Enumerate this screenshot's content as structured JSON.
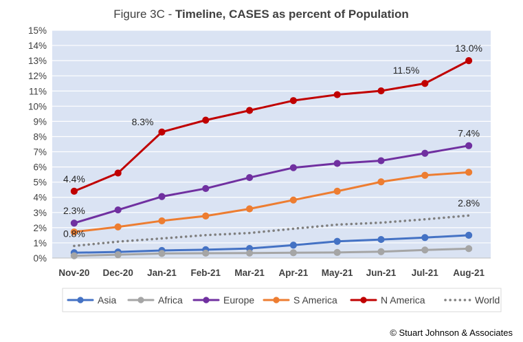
{
  "chart_data": {
    "type": "line",
    "title_prefix": "Figure 3C - ",
    "title_main": "Timeline, CASES as percent of Population",
    "xlabel": "",
    "ylabel": "",
    "categories": [
      "Nov-20",
      "Dec-20",
      "Jan-21",
      "Feb-21",
      "Mar-21",
      "Apr-21",
      "May-21",
      "Jun-21",
      "Jul-21",
      "Aug-21"
    ],
    "y_ticks": [
      "0%",
      "1%",
      "2%",
      "3%",
      "4%",
      "5%",
      "6%",
      "7%",
      "8%",
      "9%",
      "10%",
      "11%",
      "12%",
      "13%",
      "14%",
      "15%"
    ],
    "ylim": [
      0,
      15
    ],
    "grid": true,
    "legend_position": "bottom",
    "series": [
      {
        "name": "Asia",
        "color": "#4472C4",
        "dash": "solid",
        "marker": true,
        "values": [
          0.35,
          0.4,
          0.5,
          0.55,
          0.63,
          0.85,
          1.1,
          1.22,
          1.35,
          1.5
        ]
      },
      {
        "name": "Africa",
        "color": "#A5A5A5",
        "dash": "solid",
        "marker": true,
        "values": [
          0.15,
          0.22,
          0.3,
          0.32,
          0.33,
          0.35,
          0.37,
          0.42,
          0.53,
          0.62
        ]
      },
      {
        "name": "Europe",
        "color": "#7030A0",
        "dash": "solid",
        "marker": true,
        "values": [
          2.3,
          3.17,
          4.05,
          4.58,
          5.3,
          5.95,
          6.23,
          6.41,
          6.9,
          7.4
        ]
      },
      {
        "name": "S America",
        "color": "#ED7D31",
        "dash": "solid",
        "marker": true,
        "values": [
          1.72,
          2.05,
          2.45,
          2.77,
          3.24,
          3.82,
          4.4,
          5.02,
          5.45,
          5.65
        ]
      },
      {
        "name": "N America",
        "color": "#C00000",
        "dash": "solid",
        "marker": true,
        "values": [
          4.4,
          5.6,
          8.3,
          9.08,
          9.72,
          10.37,
          10.76,
          11.01,
          11.5,
          13.0
        ]
      },
      {
        "name": "World",
        "color": "#7F7F7F",
        "dash": "dotted",
        "marker": false,
        "values": [
          0.8,
          1.08,
          1.29,
          1.51,
          1.65,
          1.93,
          2.2,
          2.33,
          2.55,
          2.8
        ]
      }
    ],
    "data_labels": [
      {
        "series": "N America",
        "index": 0,
        "text": "4.4%",
        "pos": "above"
      },
      {
        "series": "N America",
        "index": 2,
        "text": "8.3%",
        "pos": "left"
      },
      {
        "series": "N America",
        "index": 8,
        "text": "11.5%",
        "pos": "aboveleft"
      },
      {
        "series": "N America",
        "index": 9,
        "text": "13.0%",
        "pos": "above"
      },
      {
        "series": "Europe",
        "index": 0,
        "text": "2.3%",
        "pos": "above"
      },
      {
        "series": "Europe",
        "index": 9,
        "text": "7.4%",
        "pos": "above"
      },
      {
        "series": "World",
        "index": 0,
        "text": "0.8%",
        "pos": "above"
      },
      {
        "series": "World",
        "index": 9,
        "text": "2.8%",
        "pos": "above"
      }
    ],
    "colors": {
      "plot_background": "#DAE3F3",
      "grid_line": "#FFFFFF",
      "axis_text": "#404040",
      "title_text": "#404040"
    }
  },
  "copyright": "© Stuart Johnson & Associates"
}
